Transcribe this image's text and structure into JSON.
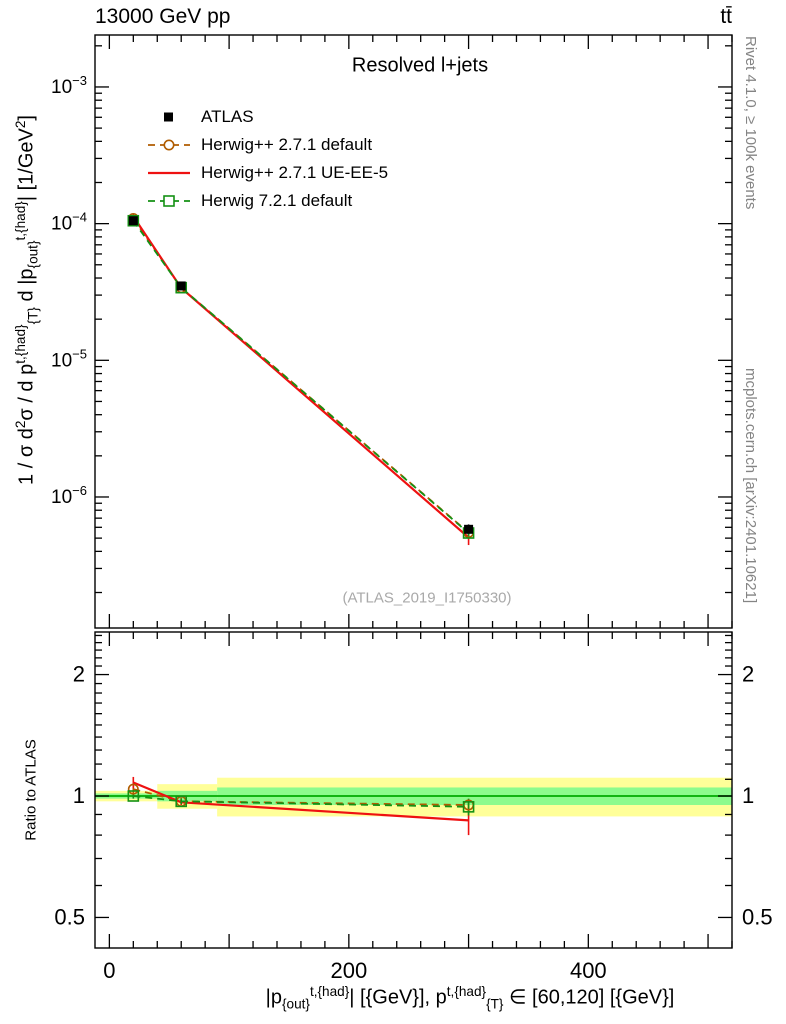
{
  "header": {
    "left": "13000 GeV pp",
    "right": "tt̄"
  },
  "side_notes": {
    "right_top": "Rivet 4.1.0, ≥ 100k events",
    "right_bottom": "mcplots.cern.ch [arXiv:2401.10621]"
  },
  "watermark": "(ATLAS_2019_I1750330)",
  "plot_title": "Resolved l+jets",
  "labels": {
    "ratio_ylabel": "Ratio to ATLAS",
    "ylabel_rich": [
      {
        "t": "1 / σ d"
      },
      {
        "t": "2",
        "sup": true
      },
      {
        "t": "σ / d p"
      },
      {
        "t": "t,{had}",
        "sup": true
      },
      {
        "t": "{T}",
        "sub": true
      },
      {
        "t": " d |p"
      },
      {
        "t": "{out}",
        "sub": true
      },
      {
        "t": "t,{had}",
        "sup": true
      },
      {
        "t": "| [1/GeV"
      },
      {
        "t": "2",
        "sup": true
      },
      {
        "t": "]"
      }
    ],
    "xlabel_rich": [
      {
        "t": "|p"
      },
      {
        "t": "{out}",
        "sub": true
      },
      {
        "t": "t,{had}",
        "sup": true
      },
      {
        "t": "| [{GeV}], p"
      },
      {
        "t": "t,{had}",
        "sup": true
      },
      {
        "t": "{T}",
        "sub": true
      },
      {
        "t": " ∈ [60,120] [{GeV}]"
      }
    ]
  },
  "legend": [
    {
      "label": "ATLAS",
      "type": "data",
      "color": "#000000"
    },
    {
      "label": "Herwig++ 2.7.1 default",
      "type": "dashed-circle",
      "color": "#b05c00"
    },
    {
      "label": "Herwig++ 2.7.1 UE-EE-5",
      "type": "solid",
      "color": "#ee1111"
    },
    {
      "label": "Herwig 7.2.1 default",
      "type": "dashed-square",
      "color": "#149114"
    }
  ],
  "colors": {
    "band_yellow": "#ffff99",
    "band_green": "#8dfb8d",
    "ref_line": "#00aa00",
    "axis": "#000000",
    "gray_text": "#848484"
  },
  "chart_data": {
    "type": "line",
    "title": "Resolved l+jets",
    "xlabel": "|p_out^{t,had}| [GeV], p_T^{t,had} ∈ [60,120] [GeV]",
    "ylabel": "1/σ d²σ / d p_T^{t,had} d |p_out^{t,had}| [1/GeV²]",
    "yscale": "log",
    "xlim": [
      -12,
      520
    ],
    "ylim_main": [
      1.1e-07,
      0.0024
    ],
    "xticks": [
      0,
      200,
      400
    ],
    "x": [
      20,
      60,
      300
    ],
    "series": [
      {
        "name": "ATLAS",
        "color": "#000000",
        "marker": "filled-square",
        "style": "data",
        "values": [
          0.000105,
          3.5e-05,
          5.8e-07
        ],
        "yerr": [
          4e-06,
          1.2e-06,
          5e-08
        ]
      },
      {
        "name": "Herwig++ 2.7.1 default",
        "color": "#b05c00",
        "marker": "open-circle",
        "dash": "7 5",
        "width": 1.8,
        "values": [
          0.000109,
          3.4e-05,
          5.5e-07
        ],
        "yerr": [
          3e-06,
          8e-07,
          4e-08
        ],
        "ratio": [
          1.04,
          0.97,
          0.95
        ],
        "ratio_err": [
          0.03,
          0.02,
          0.03
        ]
      },
      {
        "name": "Herwig++ 2.7.1 UE-EE-5",
        "color": "#ee1111",
        "marker": "none",
        "width": 2.2,
        "values": [
          0.000113,
          3.38e-05,
          5.05e-07
        ],
        "yerr": [
          4e-06,
          8e-07,
          6e-08
        ],
        "ratio": [
          1.08,
          0.965,
          0.87
        ],
        "ratio_err": [
          0.035,
          0.015,
          0.07
        ]
      },
      {
        "name": "Herwig 7.2.1 default",
        "color": "#149114",
        "marker": "open-square",
        "dash": "7 5",
        "width": 1.8,
        "values": [
          0.000105,
          3.4e-05,
          5.45e-07
        ],
        "yerr": [
          2e-06,
          6e-07,
          4e-08
        ],
        "ratio": [
          1.0,
          0.97,
          0.94
        ],
        "ratio_err": [
          0.015,
          0.015,
          0.045
        ]
      }
    ],
    "ratio": {
      "ylabel": "Ratio to ATLAS",
      "ylim": [
        0.42,
        2.55
      ],
      "yticks": [
        0.5,
        1,
        2
      ],
      "bands": [
        {
          "x0": -12,
          "x1": 40,
          "yellow": [
            0.97,
            1.03
          ],
          "green": [
            0.985,
            1.015
          ]
        },
        {
          "x0": 40,
          "x1": 90,
          "yellow": [
            0.93,
            1.07
          ],
          "green": [
            0.97,
            1.03
          ]
        },
        {
          "x0": 90,
          "x1": 520,
          "yellow": [
            0.89,
            1.11
          ],
          "green": [
            0.95,
            1.05
          ]
        }
      ]
    }
  }
}
